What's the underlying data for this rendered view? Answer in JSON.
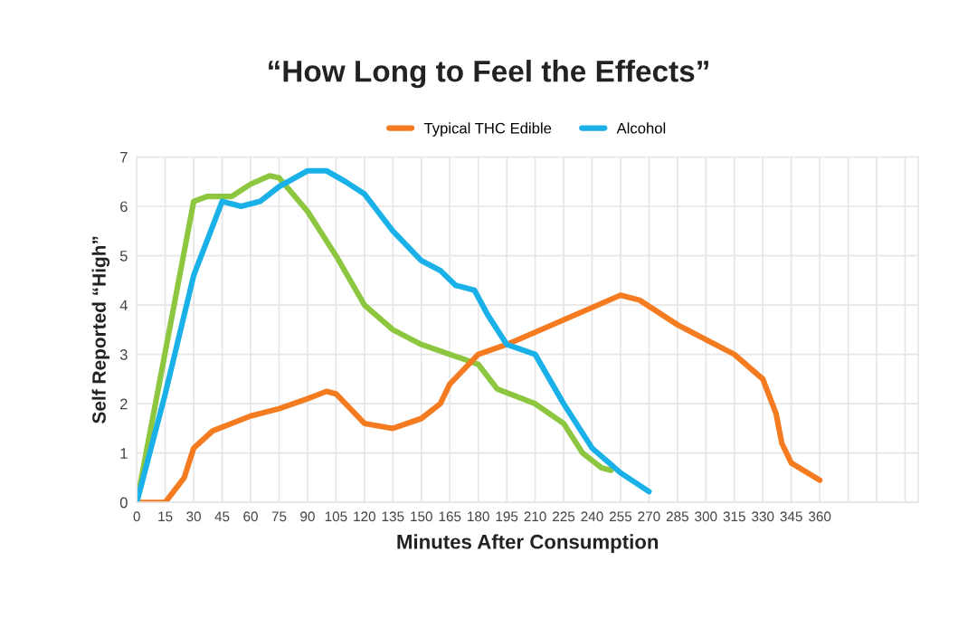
{
  "chart_data": {
    "type": "line",
    "title": "“How Long to Feel the Effects”",
    "xlabel": "Minutes After Consumption",
    "ylabel": "Self Reported “High”",
    "series": [
      {
        "color": "#8dc63f",
        "x": [
          0,
          30,
          37,
          50,
          60,
          70,
          75,
          90,
          105,
          120,
          135,
          150,
          165,
          180,
          190,
          210,
          225,
          235,
          245,
          250
        ],
        "values": [
          0,
          6.1,
          6.2,
          6.2,
          6.45,
          6.62,
          6.58,
          5.9,
          5.0,
          4.0,
          3.5,
          3.2,
          3.0,
          2.8,
          2.3,
          2.0,
          1.6,
          1.0,
          0.7,
          0.65
        ]
      },
      {
        "name": "Typical THC Edible",
        "color": "#f47b20",
        "x": [
          0,
          15,
          25,
          30,
          40,
          60,
          75,
          90,
          100,
          105,
          120,
          135,
          150,
          160,
          165,
          180,
          195,
          225,
          255,
          265,
          285,
          315,
          330,
          337,
          340,
          345,
          360
        ],
        "values": [
          0,
          0,
          0.5,
          1.1,
          1.45,
          1.75,
          1.9,
          2.1,
          2.25,
          2.2,
          1.6,
          1.5,
          1.7,
          2.0,
          2.4,
          3.0,
          3.2,
          3.7,
          4.2,
          4.1,
          3.6,
          3.0,
          2.5,
          1.8,
          1.2,
          0.8,
          0.45
        ]
      },
      {
        "name": "Alcohol",
        "color": "#1ab0e8",
        "x": [
          0,
          15,
          30,
          45,
          55,
          65,
          75,
          90,
          100,
          110,
          120,
          135,
          150,
          160,
          168,
          178,
          185,
          195,
          210,
          225,
          240,
          255,
          270
        ],
        "values": [
          0,
          2.2,
          4.6,
          6.1,
          6.0,
          6.1,
          6.4,
          6.72,
          6.72,
          6.5,
          6.25,
          5.5,
          4.9,
          4.7,
          4.4,
          4.3,
          3.8,
          3.2,
          3.0,
          2.0,
          1.1,
          0.6,
          0.22
        ]
      }
    ],
    "xlim": [
      0,
      412
    ],
    "xticks": [
      0,
      15,
      30,
      45,
      60,
      75,
      90,
      105,
      120,
      135,
      150,
      165,
      180,
      195,
      210,
      225,
      240,
      255,
      270,
      285,
      300,
      315,
      330,
      345,
      360,
      {
        "value": 375,
        "label": null
      },
      {
        "value": 390,
        "label": null
      },
      {
        "value": 405,
        "label": null
      }
    ],
    "ylim": [
      0,
      7
    ],
    "yticks": [
      0,
      1,
      2,
      3,
      4,
      5,
      6,
      7
    ],
    "grid": true,
    "legend": "top",
    "marker": "none",
    "line_style": "solid"
  }
}
